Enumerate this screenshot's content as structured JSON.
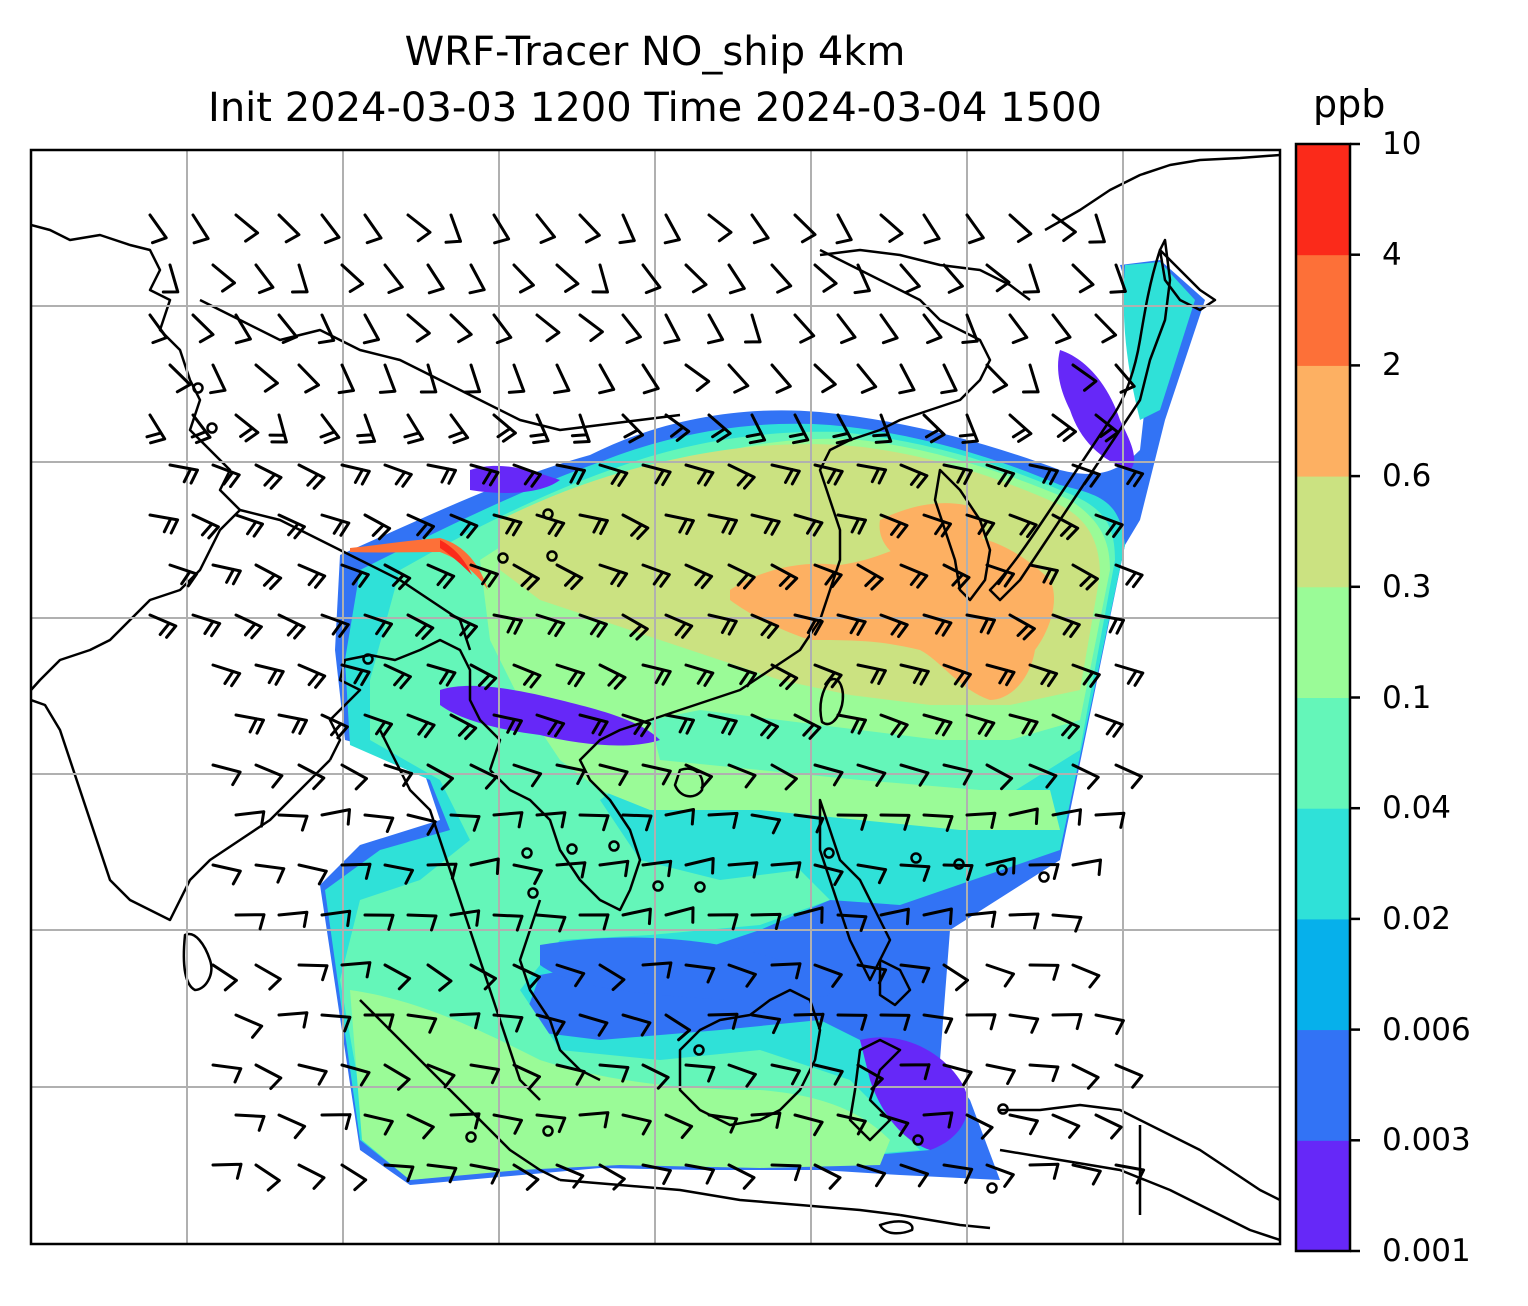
{
  "title": {
    "line1": "WRF-Tracer NO_ship 4km",
    "line2": "Init 2024-03-03 1200 Time 2024-03-04 1500"
  },
  "colorbar": {
    "unit": "ppb",
    "levels": [
      "0.001",
      "0.003",
      "0.006",
      "0.02",
      "0.04",
      "0.1",
      "0.3",
      "0.6",
      "2",
      "4",
      "10"
    ],
    "colors": [
      "#6628f8",
      "#3273f5",
      "#06b0eb",
      "#2fe1d8",
      "#64f6b9",
      "#9afb97",
      "#cbe281",
      "#fdb062",
      "#fd7038",
      "#fb2a1a"
    ]
  },
  "map": {
    "projection": "mercator",
    "gridlines": true,
    "field": "NO_ship tracer concentration",
    "overlay": "wind barbs",
    "station_markers": "small black circles"
  }
}
